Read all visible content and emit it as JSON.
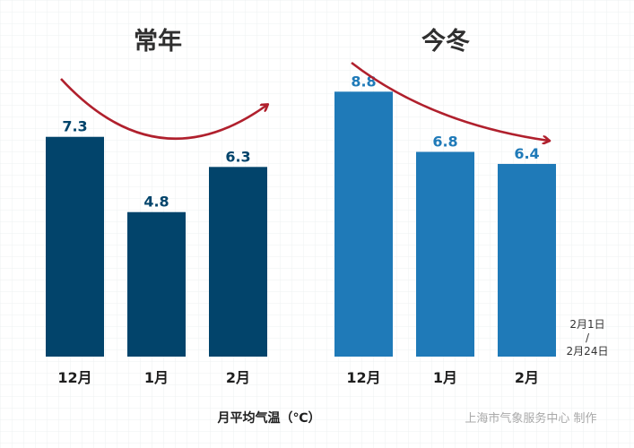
{
  "chart_data": {
    "type": "bar",
    "groups": [
      {
        "title": "常年",
        "categories": [
          "12月",
          "1月",
          "2月"
        ],
        "values": [
          7.3,
          4.8,
          6.3
        ],
        "color": "#02446b",
        "label_color": "#02446b",
        "trend": "arch"
      },
      {
        "title": "今冬",
        "categories": [
          "12月",
          "1月",
          "2月"
        ],
        "values": [
          8.8,
          6.8,
          6.4
        ],
        "color": "#1f7ab8",
        "label_color": "#1f7ab8",
        "trend": "down"
      }
    ],
    "ylim": [
      0,
      10
    ],
    "xlabel": "月平均气温（℃）",
    "grid": true,
    "arrow_color": "#b0202d",
    "annotation": {
      "line1": "2月1日",
      "line2": "/",
      "line3": "2月24日"
    }
  },
  "credit": "上海市气象服务中心 制作"
}
